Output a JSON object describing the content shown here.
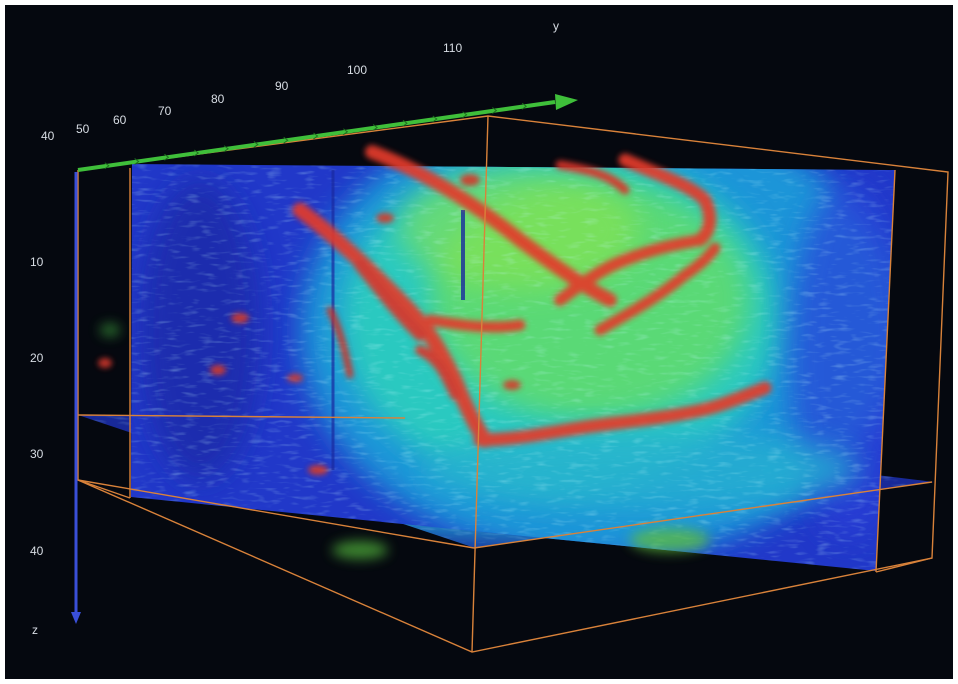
{
  "view": {
    "kind": "3D volume rendering",
    "background_color": "#05080f",
    "frame_color": "#ffffff"
  },
  "axes": {
    "y": {
      "label": "y",
      "ticks": [
        "40",
        "50",
        "60",
        "70",
        "80",
        "90",
        "100",
        "110"
      ],
      "color": "#3fbf3a"
    },
    "z": {
      "label": "z",
      "ticks": [
        "10",
        "20",
        "30",
        "40"
      ],
      "color": "#3a4fd8"
    }
  },
  "bounding_box": {
    "color": "#d9823a"
  },
  "colormap": {
    "low": "#1d2bb8",
    "mid_low": "#1e8fd8",
    "mid": "#2fd3b0",
    "mid_high": "#7fe34a",
    "high": "#e2382b"
  }
}
